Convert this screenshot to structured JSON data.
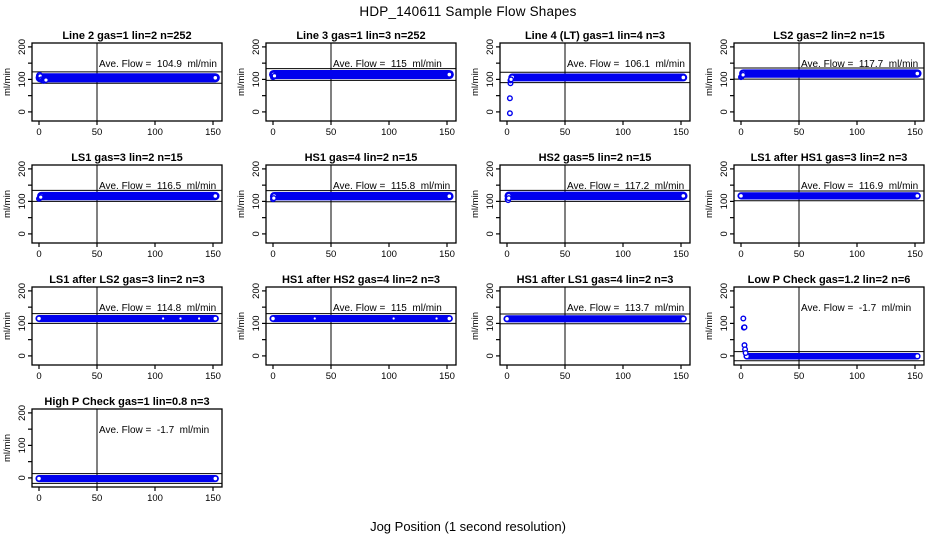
{
  "title": "HDP_140611  Sample Flow Shapes",
  "xlabel": "Jog Position (1 second resolution)",
  "ylabel": "ml/min",
  "colors": {
    "points": "#0000EE",
    "axis": "#000000",
    "ref_line": "#000000",
    "background": "#FFFFFF"
  },
  "axes": {
    "x_ticks": [
      0,
      50,
      100,
      150
    ],
    "y_ticks": [
      0,
      50,
      100,
      150,
      200
    ],
    "y_labeled_ticks": [
      0,
      100,
      200
    ],
    "xlim": [
      -6.5,
      158
    ],
    "ylim": [
      -28,
      212
    ],
    "vline_x": 50
  },
  "chart_data": [
    {
      "type": "scatter",
      "title": "Line 2 gas=1 lin=2 n=252",
      "ave_flow": 104.9,
      "annotation": "Ave. Flow =  104.9  ml/min",
      "band": {
        "y": 105,
        "x_start": 1,
        "x_end": 152,
        "half_width": 14
      },
      "lead_points": [
        [
          0,
          112
        ],
        [
          0.5,
          114
        ],
        [
          1,
          110
        ],
        [
          2,
          100
        ],
        [
          3,
          97
        ],
        [
          4,
          96
        ],
        [
          5,
          97
        ],
        [
          6,
          98
        ]
      ],
      "ref_lines_y": [
        123,
        88
      ],
      "gaps_x": []
    },
    {
      "type": "scatter",
      "title": "Line 3 gas=1 lin=3 n=252",
      "ave_flow": 115,
      "annotation": "Ave. Flow =  115  ml/min",
      "band": {
        "y": 115,
        "x_start": 0.5,
        "x_end": 152,
        "half_width": 14
      },
      "lead_points": [
        [
          0,
          107
        ],
        [
          0.7,
          109
        ],
        [
          1.3,
          111
        ]
      ],
      "ref_lines_y": [
        133,
        97
      ],
      "gaps_x": []
    },
    {
      "type": "scatter",
      "title": "Line 4 (LT) gas=1 lin=4 n=3",
      "ave_flow": 106.1,
      "annotation": "Ave. Flow =  106.1  ml/min",
      "band": {
        "y": 106,
        "x_start": 4.5,
        "x_end": 152,
        "half_width": 12
      },
      "lead_points": [
        [
          2.5,
          -4
        ],
        [
          2.5,
          42
        ],
        [
          3,
          88
        ],
        [
          3,
          97
        ],
        [
          3.5,
          100
        ]
      ],
      "ref_lines_y": [
        122,
        90
      ],
      "gaps_x": []
    },
    {
      "type": "scatter",
      "title": "LS2 gas=2 lin=2 n=15",
      "ave_flow": 117.7,
      "annotation": "Ave. Flow =  117.7  ml/min",
      "band": {
        "y": 118,
        "x_start": 2,
        "x_end": 152,
        "half_width": 13
      },
      "lead_points": [
        [
          0,
          107
        ],
        [
          0.6,
          109
        ],
        [
          1.2,
          112
        ],
        [
          1.8,
          114
        ]
      ],
      "ref_lines_y": [
        135,
        101
      ],
      "gaps_x": []
    },
    {
      "type": "scatter",
      "title": "LS1 gas=3 lin=2 n=15",
      "ave_flow": 116.5,
      "annotation": "Ave. Flow =  116.5  ml/min",
      "band": {
        "y": 116.5,
        "x_start": 2,
        "x_end": 152,
        "half_width": 13
      },
      "lead_points": [
        [
          0,
          108
        ],
        [
          0.8,
          111
        ],
        [
          1.5,
          113
        ]
      ],
      "ref_lines_y": [
        134,
        100
      ],
      "gaps_x": []
    },
    {
      "type": "scatter",
      "title": "HS1 gas=4 lin=2 n=15",
      "ave_flow": 115.8,
      "annotation": "Ave. Flow =  115.8  ml/min",
      "band": {
        "y": 116,
        "x_start": 1,
        "x_end": 152,
        "half_width": 13
      },
      "lead_points": [
        [
          0,
          107
        ],
        [
          0.7,
          110
        ]
      ],
      "ref_lines_y": [
        133,
        99
      ],
      "gaps_x": []
    },
    {
      "type": "scatter",
      "title": "HS2 gas=5 lin=2 n=15",
      "ave_flow": 117.2,
      "annotation": "Ave. Flow =  117.2  ml/min",
      "band": {
        "y": 117,
        "x_start": 1.5,
        "x_end": 152,
        "half_width": 13
      },
      "lead_points": [
        [
          0.5,
          107
        ],
        [
          1,
          104
        ],
        [
          1.5,
          110
        ]
      ],
      "ref_lines_y": [
        134,
        100
      ],
      "gaps_x": []
    },
    {
      "type": "scatter",
      "title": "LS1 after HS1 gas=3 lin=2 n=3",
      "ave_flow": 116.9,
      "annotation": "Ave. Flow =  116.9  ml/min",
      "band": {
        "y": 117,
        "x_start": 0,
        "x_end": 152,
        "half_width": 11
      },
      "lead_points": [],
      "ref_lines_y": [
        132,
        102
      ],
      "gaps_x": []
    },
    {
      "type": "scatter",
      "title": "LS1 after LS2 gas=3 lin=2 n=3",
      "ave_flow": 114.8,
      "annotation": "Ave. Flow =  114.8  ml/min",
      "band": {
        "y": 115,
        "x_start": 0,
        "x_end": 152,
        "half_width": 11
      },
      "lead_points": [],
      "ref_lines_y": [
        130,
        100
      ],
      "gaps_x": [
        107,
        122,
        138
      ]
    },
    {
      "type": "scatter",
      "title": "HS1 after HS2 gas=4 lin=2 n=3",
      "ave_flow": 115,
      "annotation": "Ave. Flow =  115  ml/min",
      "band": {
        "y": 115,
        "x_start": 0,
        "x_end": 152,
        "half_width": 11
      },
      "lead_points": [],
      "ref_lines_y": [
        130,
        100
      ],
      "gaps_x": [
        36,
        104,
        141
      ]
    },
    {
      "type": "scatter",
      "title": "HS1 after LS1 gas=4 lin=2 n=3",
      "ave_flow": 113.7,
      "annotation": "Ave. Flow =  113.7  ml/min",
      "band": {
        "y": 114,
        "x_start": 0,
        "x_end": 152,
        "half_width": 11
      },
      "lead_points": [],
      "ref_lines_y": [
        129,
        99
      ],
      "gaps_x": []
    },
    {
      "type": "scatter",
      "title": "Low P Check gas=1.2 lin=2 n=6",
      "ave_flow": -1.7,
      "annotation": "Ave. Flow =  -1.7  ml/min",
      "band": {
        "y": -1,
        "x_start": 5,
        "x_end": 152,
        "half_width": 10
      },
      "lead_points": [
        [
          2,
          115
        ],
        [
          2.5,
          87
        ],
        [
          3,
          88
        ],
        [
          3,
          33
        ],
        [
          3.5,
          20
        ],
        [
          4,
          9
        ]
      ],
      "ref_lines_y": [
        13,
        -15
      ],
      "gaps_x": []
    },
    {
      "type": "scatter",
      "title": "High P Check gas=1 lin=0.8 n=3",
      "ave_flow": -1.7,
      "annotation": "Ave. Flow =  -1.7  ml/min",
      "band": {
        "y": -2,
        "x_start": 0,
        "x_end": 152,
        "half_width": 11
      },
      "lead_points": [],
      "ref_lines_y": [
        13,
        -17
      ],
      "gaps_x": []
    }
  ]
}
